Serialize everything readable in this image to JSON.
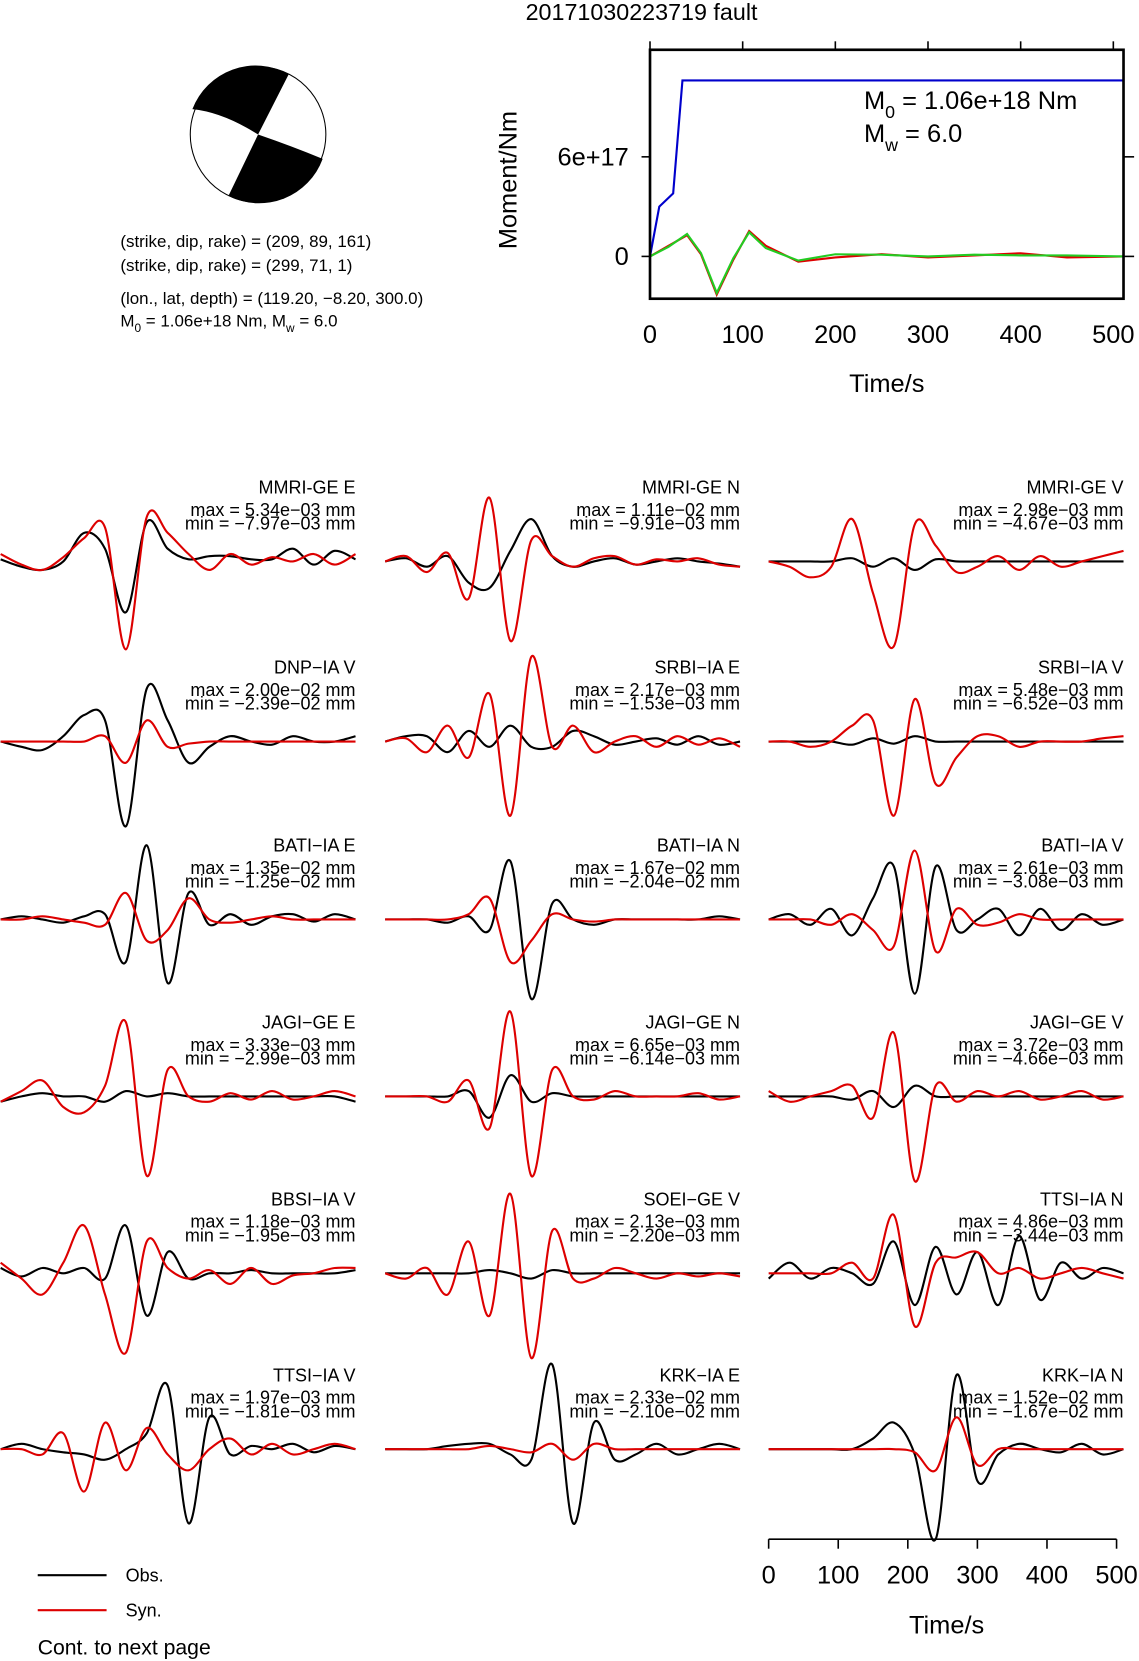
{
  "title": "20171030223719 fault",
  "source": {
    "lines": [
      "(strike, dip, rake) = (209, 89, 161)",
      "(strike, dip, rake) = (299, 71, 1)",
      "(lon., lat, depth) = (119.20, −8.20, 300.0)"
    ],
    "moment_line": [
      {
        "text": "M"
      },
      {
        "text": "0",
        "sub": true
      },
      {
        "text": " = 1.06e+18 Nm, M"
      },
      {
        "text": "w",
        "sub": true
      },
      {
        "text": " = 6.0"
      }
    ]
  },
  "chart_data": [
    {
      "type": "line",
      "xlabel": "Time/s",
      "ylabel": "Moment/Nm",
      "xlim": [
        0,
        511
      ],
      "ylim": [
        -2.55e+17,
        1.245e+18
      ],
      "xticks": [
        0,
        100,
        200,
        300,
        400,
        500
      ],
      "yticks": [
        0,
        {
          "value": 6e+17,
          "label": "6e+17"
        }
      ],
      "annotations": [
        [
          {
            "text": "M"
          },
          {
            "text": "0",
            "sub": true
          },
          {
            "text": " = 1.06e+18 Nm"
          }
        ],
        [
          {
            "text": "M"
          },
          {
            "text": "w",
            "sub": true
          },
          {
            "text": " = 6.0"
          }
        ]
      ],
      "series": [
        {
          "color": "#0000cc",
          "x": [
            0,
            10,
            25,
            35,
            511
          ],
          "values": [
            0,
            3e+17,
            3.8e+17,
            1.06e+18,
            1.06e+18
          ]
        },
        {
          "color": "#dd0000",
          "x": [
            0,
            20,
            40,
            55,
            72,
            90,
            107,
            125,
            160,
            200,
            250,
            300,
            350,
            400,
            450,
            511
          ],
          "values": [
            0,
            6.4e+16,
            1.28e+17,
            1.3e+16,
            -2.3e+17,
            -1.9e+16,
            1.53e+17,
            6.4e+16,
            -3.2e+16,
            -6000000000000000.0,
            1.3e+16,
            -6000000000000000.0,
            6000000000000000.0,
            1.9e+16,
            -6000000000000000.0,
            0
          ]
        },
        {
          "color": "#22cc22",
          "x": [
            0,
            20,
            40,
            55,
            72,
            90,
            107,
            125,
            160,
            200,
            250,
            300,
            350,
            400,
            450,
            511
          ],
          "values": [
            0,
            5.8e+16,
            1.35e+17,
            2e+16,
            -2.2e+17,
            -1e+16,
            1.45e+17,
            5e+16,
            -2.5e+16,
            1.3e+16,
            1e+16,
            0,
            1e+16,
            6000000000000000.0,
            6000000000000000.0,
            0
          ]
        }
      ]
    },
    {
      "type": "waveform",
      "xlabel": "Time/s",
      "x": [
        0,
        30,
        60,
        90,
        120,
        150,
        180,
        210,
        240,
        270,
        300,
        330,
        360,
        390,
        420,
        450,
        480,
        510
      ],
      "xlim": [
        0,
        510
      ],
      "xticks": [
        0,
        100,
        200,
        300,
        400,
        500
      ],
      "series": [
        {
          "name": "Obs.",
          "color": "#000000"
        },
        {
          "name": "Syn.",
          "color": "#dd0000"
        }
      ],
      "note": "Cont. to next page",
      "panels": [
        {
          "title": "MMRI-GE E",
          "max": "max = 5.34e−03 mm",
          "min": "min = −7.97e−03 mm",
          "obs": [
            2,
            -5,
            -8,
            0,
            27,
            12,
            -48,
            37,
            12,
            2,
            5,
            5,
            2,
            2,
            12,
            -3,
            10,
            2
          ],
          "syn": [
            7,
            -3,
            -8,
            4,
            22,
            32,
            -83,
            42,
            27,
            7,
            -8,
            7,
            -3,
            4,
            0,
            7,
            -3,
            7
          ]
        },
        {
          "title": "MMRI-GE N",
          "max": "max = 1.11e−02 mm",
          "min": "min = −9.91e−03 mm",
          "obs": [
            0,
            3,
            -5,
            5,
            -20,
            -25,
            10,
            40,
            5,
            -5,
            0,
            3,
            -3,
            0,
            3,
            0,
            -2,
            -5
          ],
          "syn": [
            0,
            5,
            -10,
            8,
            -35,
            60,
            -75,
            20,
            5,
            -5,
            3,
            5,
            -3,
            2,
            0,
            3,
            -3,
            -5
          ]
        },
        {
          "title": "MMRI-GE V",
          "max": "max = 2.98e−03 mm",
          "min": "min = −4.67e−03 mm",
          "obs": [
            0,
            0,
            0,
            0,
            3,
            -5,
            3,
            -8,
            2,
            0,
            0,
            0,
            0,
            0,
            0,
            0,
            0,
            0
          ],
          "syn": [
            0,
            -5,
            -15,
            -5,
            40,
            -30,
            -80,
            35,
            15,
            -10,
            -5,
            5,
            -8,
            5,
            -5,
            0,
            5,
            10
          ]
        },
        {
          "title": "DNP−IA V",
          "max": "max = 2.00e−02 mm",
          "min": "min = −2.39e−02 mm",
          "obs": [
            0,
            -5,
            -8,
            5,
            25,
            20,
            -80,
            50,
            20,
            -20,
            -5,
            5,
            0,
            -3,
            5,
            0,
            0,
            5
          ],
          "syn": [
            0,
            0,
            0,
            0,
            0,
            5,
            -20,
            20,
            -5,
            -2,
            0,
            0,
            0,
            0,
            0,
            0,
            0,
            0
          ]
        },
        {
          "title": "SRBI−IA E",
          "max": "max = 2.17e−03 mm",
          "min": "min = −1.53e−03 mm",
          "obs": [
            0,
            5,
            5,
            -10,
            10,
            -5,
            15,
            -5,
            -5,
            10,
            5,
            -3,
            0,
            3,
            -3,
            5,
            -3,
            0
          ],
          "syn": [
            0,
            3,
            -10,
            15,
            -15,
            45,
            -70,
            80,
            -5,
            15,
            -10,
            0,
            5,
            -5,
            5,
            -3,
            3,
            -5
          ]
        },
        {
          "title": "SRBI−IA V",
          "max": "max = 5.48e−03 mm",
          "min": "min = −6.52e−03 mm",
          "obs": [
            0,
            0,
            0,
            0,
            -3,
            3,
            -2,
            5,
            0,
            0,
            0,
            0,
            0,
            0,
            0,
            0,
            0,
            0
          ],
          "syn": [
            0,
            0,
            -5,
            0,
            15,
            20,
            -70,
            40,
            -40,
            -15,
            5,
            5,
            -5,
            0,
            0,
            0,
            3,
            5
          ]
        },
        {
          "title": "BATI−IA E",
          "max": "max = 1.35e−02 mm",
          "min": "min = −1.25e−02 mm",
          "obs": [
            0,
            3,
            0,
            -3,
            3,
            5,
            -40,
            70,
            -60,
            25,
            -5,
            5,
            -5,
            3,
            5,
            -2,
            5,
            0
          ],
          "syn": [
            0,
            0,
            3,
            0,
            -3,
            -5,
            25,
            -20,
            -10,
            20,
            0,
            -3,
            0,
            3,
            0,
            0,
            0,
            0
          ]
        },
        {
          "title": "BATI−IA N",
          "max": "max = 1.67e−02 mm",
          "min": "min = −2.04e−02 mm",
          "obs": [
            0,
            0,
            0,
            -3,
            3,
            -10,
            55,
            -75,
            15,
            0,
            -5,
            0,
            0,
            0,
            0,
            0,
            3,
            0
          ],
          "syn": [
            0,
            0,
            0,
            0,
            5,
            20,
            -40,
            -20,
            5,
            0,
            -2,
            0,
            0,
            0,
            0,
            0,
            0,
            0
          ]
        },
        {
          "title": "BATI−IA V",
          "max": "max = 2.61e−03 mm",
          "min": "min = −3.08e−03 mm",
          "obs": [
            0,
            5,
            -5,
            10,
            -15,
            20,
            50,
            -70,
            50,
            -10,
            0,
            10,
            -15,
            10,
            -10,
            5,
            -5,
            0
          ],
          "syn": [
            0,
            0,
            0,
            -5,
            5,
            -10,
            -25,
            65,
            -30,
            10,
            -5,
            -3,
            5,
            0,
            0,
            0,
            0,
            0
          ]
        },
        {
          "title": "JAGI−GE E",
          "max": "max = 3.33e−03 mm",
          "min": "min = −2.99e−03 mm",
          "obs": [
            -5,
            0,
            3,
            0,
            0,
            -5,
            5,
            0,
            3,
            0,
            0,
            0,
            0,
            0,
            0,
            0,
            0,
            -5
          ],
          "syn": [
            -5,
            5,
            15,
            -10,
            -15,
            10,
            70,
            -75,
            25,
            0,
            -5,
            3,
            -3,
            5,
            -3,
            0,
            5,
            0
          ]
        },
        {
          "title": "JAGI−GE N",
          "max": "max = 6.65e−03 mm",
          "min": "min = −6.14e−03 mm",
          "obs": [
            0,
            0,
            0,
            0,
            5,
            -20,
            20,
            -5,
            3,
            0,
            0,
            0,
            0,
            0,
            0,
            0,
            0,
            0
          ],
          "syn": [
            0,
            0,
            0,
            -5,
            15,
            -30,
            80,
            -75,
            25,
            0,
            -3,
            5,
            0,
            0,
            0,
            3,
            -3,
            0
          ]
        },
        {
          "title": "JAGI−GE V",
          "max": "max = 3.72e−03 mm",
          "min": "min = −4.66e−03 mm",
          "obs": [
            0,
            0,
            0,
            0,
            -3,
            5,
            -10,
            10,
            0,
            0,
            0,
            0,
            0,
            0,
            0,
            0,
            0,
            0
          ],
          "syn": [
            5,
            -5,
            0,
            5,
            10,
            -20,
            60,
            -80,
            10,
            -5,
            5,
            0,
            5,
            -3,
            0,
            5,
            -3,
            0
          ]
        },
        {
          "title": "BBSI−IA V",
          "max": "max = 1.18e−03 mm",
          "min": "min = −1.95e−03 mm",
          "obs": [
            5,
            -3,
            5,
            0,
            5,
            -5,
            45,
            -40,
            20,
            -5,
            0,
            0,
            3,
            0,
            0,
            0,
            0,
            3
          ],
          "syn": [
            10,
            -5,
            -20,
            10,
            45,
            -20,
            -75,
            30,
            5,
            -5,
            3,
            -10,
            5,
            -10,
            -2,
            0,
            5,
            5
          ]
        },
        {
          "title": "SOEI−GE V",
          "max": "max = 2.13e−03 mm",
          "min": "min = −2.20e−03 mm",
          "obs": [
            0,
            0,
            0,
            0,
            0,
            3,
            0,
            -5,
            3,
            0,
            0,
            0,
            0,
            0,
            0,
            0,
            0,
            0
          ],
          "syn": [
            0,
            -5,
            5,
            -20,
            30,
            -40,
            75,
            -80,
            40,
            -5,
            -5,
            5,
            0,
            -5,
            0,
            -3,
            0,
            -3
          ]
        },
        {
          "title": "TTSI−IA N",
          "max": "max = 4.86e−03 mm",
          "min": "min = −3.44e−03 mm",
          "obs": [
            -5,
            10,
            -5,
            5,
            0,
            -10,
            30,
            -30,
            25,
            -20,
            20,
            -30,
            35,
            -25,
            10,
            -5,
            5,
            0
          ],
          "syn": [
            0,
            0,
            0,
            0,
            10,
            -5,
            55,
            -50,
            10,
            15,
            20,
            0,
            5,
            -5,
            0,
            5,
            0,
            -5
          ]
        },
        {
          "title": "TTSI−IA V",
          "max": "max = 1.97e−03 mm",
          "min": "min = −1.81e−03 mm",
          "obs": [
            0,
            5,
            0,
            -3,
            -5,
            -10,
            0,
            15,
            60,
            -70,
            30,
            -5,
            3,
            0,
            5,
            -3,
            3,
            0
          ],
          "syn": [
            0,
            0,
            -5,
            15,
            -40,
            25,
            -20,
            20,
            -5,
            -20,
            0,
            10,
            -5,
            5,
            -5,
            0,
            5,
            0
          ]
        },
        {
          "title": "KRK−IA E",
          "max": "max = 2.33e−02 mm",
          "min": "min = −2.10e−02 mm",
          "obs": [
            0,
            0,
            0,
            3,
            5,
            5,
            -5,
            -10,
            80,
            -70,
            25,
            -10,
            -5,
            5,
            -5,
            0,
            5,
            0
          ],
          "syn": [
            0,
            0,
            0,
            0,
            0,
            3,
            0,
            -3,
            5,
            -10,
            5,
            0,
            0,
            0,
            0,
            0,
            0,
            0
          ]
        },
        {
          "title": "KRK−IA N",
          "max": "max = 1.52e−02 mm",
          "min": "min = −1.67e−02 mm",
          "obs": [
            0,
            0,
            0,
            0,
            0,
            10,
            25,
            -5,
            -85,
            70,
            -30,
            -5,
            5,
            0,
            -3,
            5,
            -5,
            0
          ],
          "syn": [
            0,
            0,
            0,
            0,
            0,
            0,
            0,
            -3,
            -20,
            30,
            -15,
            0,
            0,
            0,
            0,
            0,
            0,
            0
          ]
        }
      ]
    }
  ]
}
